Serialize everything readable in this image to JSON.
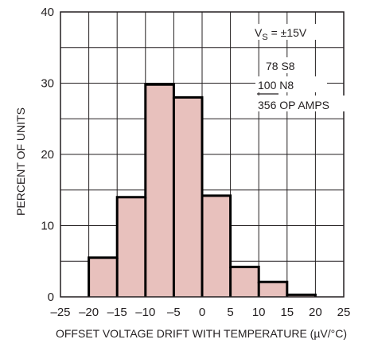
{
  "chart_data": {
    "type": "bar",
    "subtype": "histogram",
    "xlabel": "OFFSET VOLTAGE DRIFT WITH TEMPERATURE (µV/°C)",
    "ylabel": "PERCENT OF UNITS",
    "xlim": [
      -25,
      25
    ],
    "ylim": [
      0,
      40
    ],
    "x_ticks": [
      "–25",
      "–20",
      "–15",
      "–10",
      "–5",
      "0",
      "5",
      "10",
      "15",
      "20",
      "25"
    ],
    "y_ticks": [
      "0",
      "10",
      "20",
      "30",
      "40"
    ],
    "grid": true,
    "bins": [
      {
        "from": -20,
        "to": -15,
        "value": 5.5
      },
      {
        "from": -15,
        "to": -10,
        "value": 14
      },
      {
        "from": -10,
        "to": -5,
        "value": 29.8
      },
      {
        "from": -5,
        "to": 0,
        "value": 28
      },
      {
        "from": 0,
        "to": 5,
        "value": 14.2
      },
      {
        "from": 5,
        "to": 10,
        "value": 4.2
      },
      {
        "from": 10,
        "to": 15,
        "value": 2.1
      },
      {
        "from": 15,
        "to": 20,
        "value": 0.3
      }
    ],
    "bar_color": "#e8c1bd",
    "outline_color": "#000000",
    "annotations": {
      "vs_prefix": "V",
      "vs_sub": "S",
      "vs_value": " = ±15V",
      "line1": "78 S8",
      "line2_num": "100",
      "line2_text": " N8",
      "line3_num": "356",
      "line3_text": " OP AMPS"
    }
  }
}
